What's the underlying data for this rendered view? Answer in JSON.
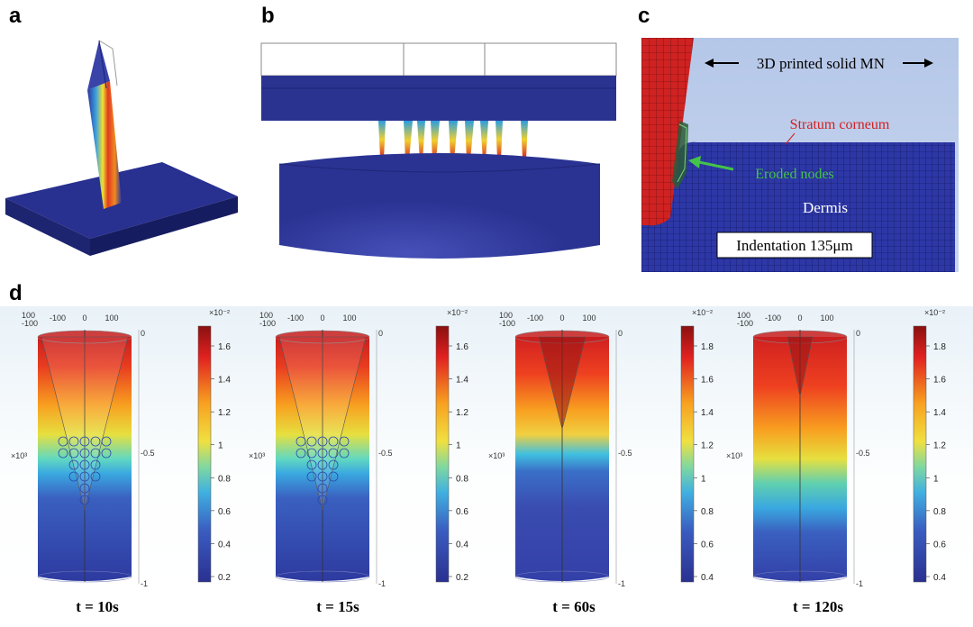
{
  "panels": {
    "a": {
      "letter": "a"
    },
    "b": {
      "letter": "b"
    },
    "c": {
      "letter": "c",
      "label_mn": "3D printed solid MN",
      "label_sc": "Stratum corneum",
      "label_eroded": "Eroded nodes",
      "label_dermis": "Dermis",
      "label_indent": "Indentation 135μm"
    },
    "d": {
      "letter": "d",
      "top_ticks": [
        "-100",
        "0",
        "100"
      ],
      "corner_ticks": [
        "100",
        "-100"
      ],
      "right_ticks": [
        "0",
        "-0.5",
        "-1"
      ],
      "y_multiplier": "×10³",
      "cb_multiplier": "×10⁻²",
      "plots": [
        {
          "time": "t = 10s",
          "cb_ticks": [
            "1.6",
            "1.4",
            "1.2",
            "1",
            "0.8",
            "0.6",
            "0.4",
            "0.2"
          ]
        },
        {
          "time": "t = 15s",
          "cb_ticks": [
            "1.6",
            "1.4",
            "1.2",
            "1",
            "0.8",
            "0.6",
            "0.4",
            "0.2"
          ]
        },
        {
          "time": "t = 60s",
          "cb_ticks": [
            "1.8",
            "1.6",
            "1.4",
            "1.2",
            "1",
            "0.8",
            "0.6",
            "0.4"
          ]
        },
        {
          "time": "t = 120s",
          "cb_ticks": [
            "1.8",
            "1.6",
            "1.4",
            "1.2",
            "1",
            "0.8",
            "0.6",
            "0.4"
          ]
        }
      ]
    }
  },
  "colors": {
    "navy": "#1f2a8a",
    "mesh_red": "#c8201f",
    "mesh_blue": "#2730a0",
    "text_red": "#d22020",
    "text_green": "#44c24a"
  }
}
